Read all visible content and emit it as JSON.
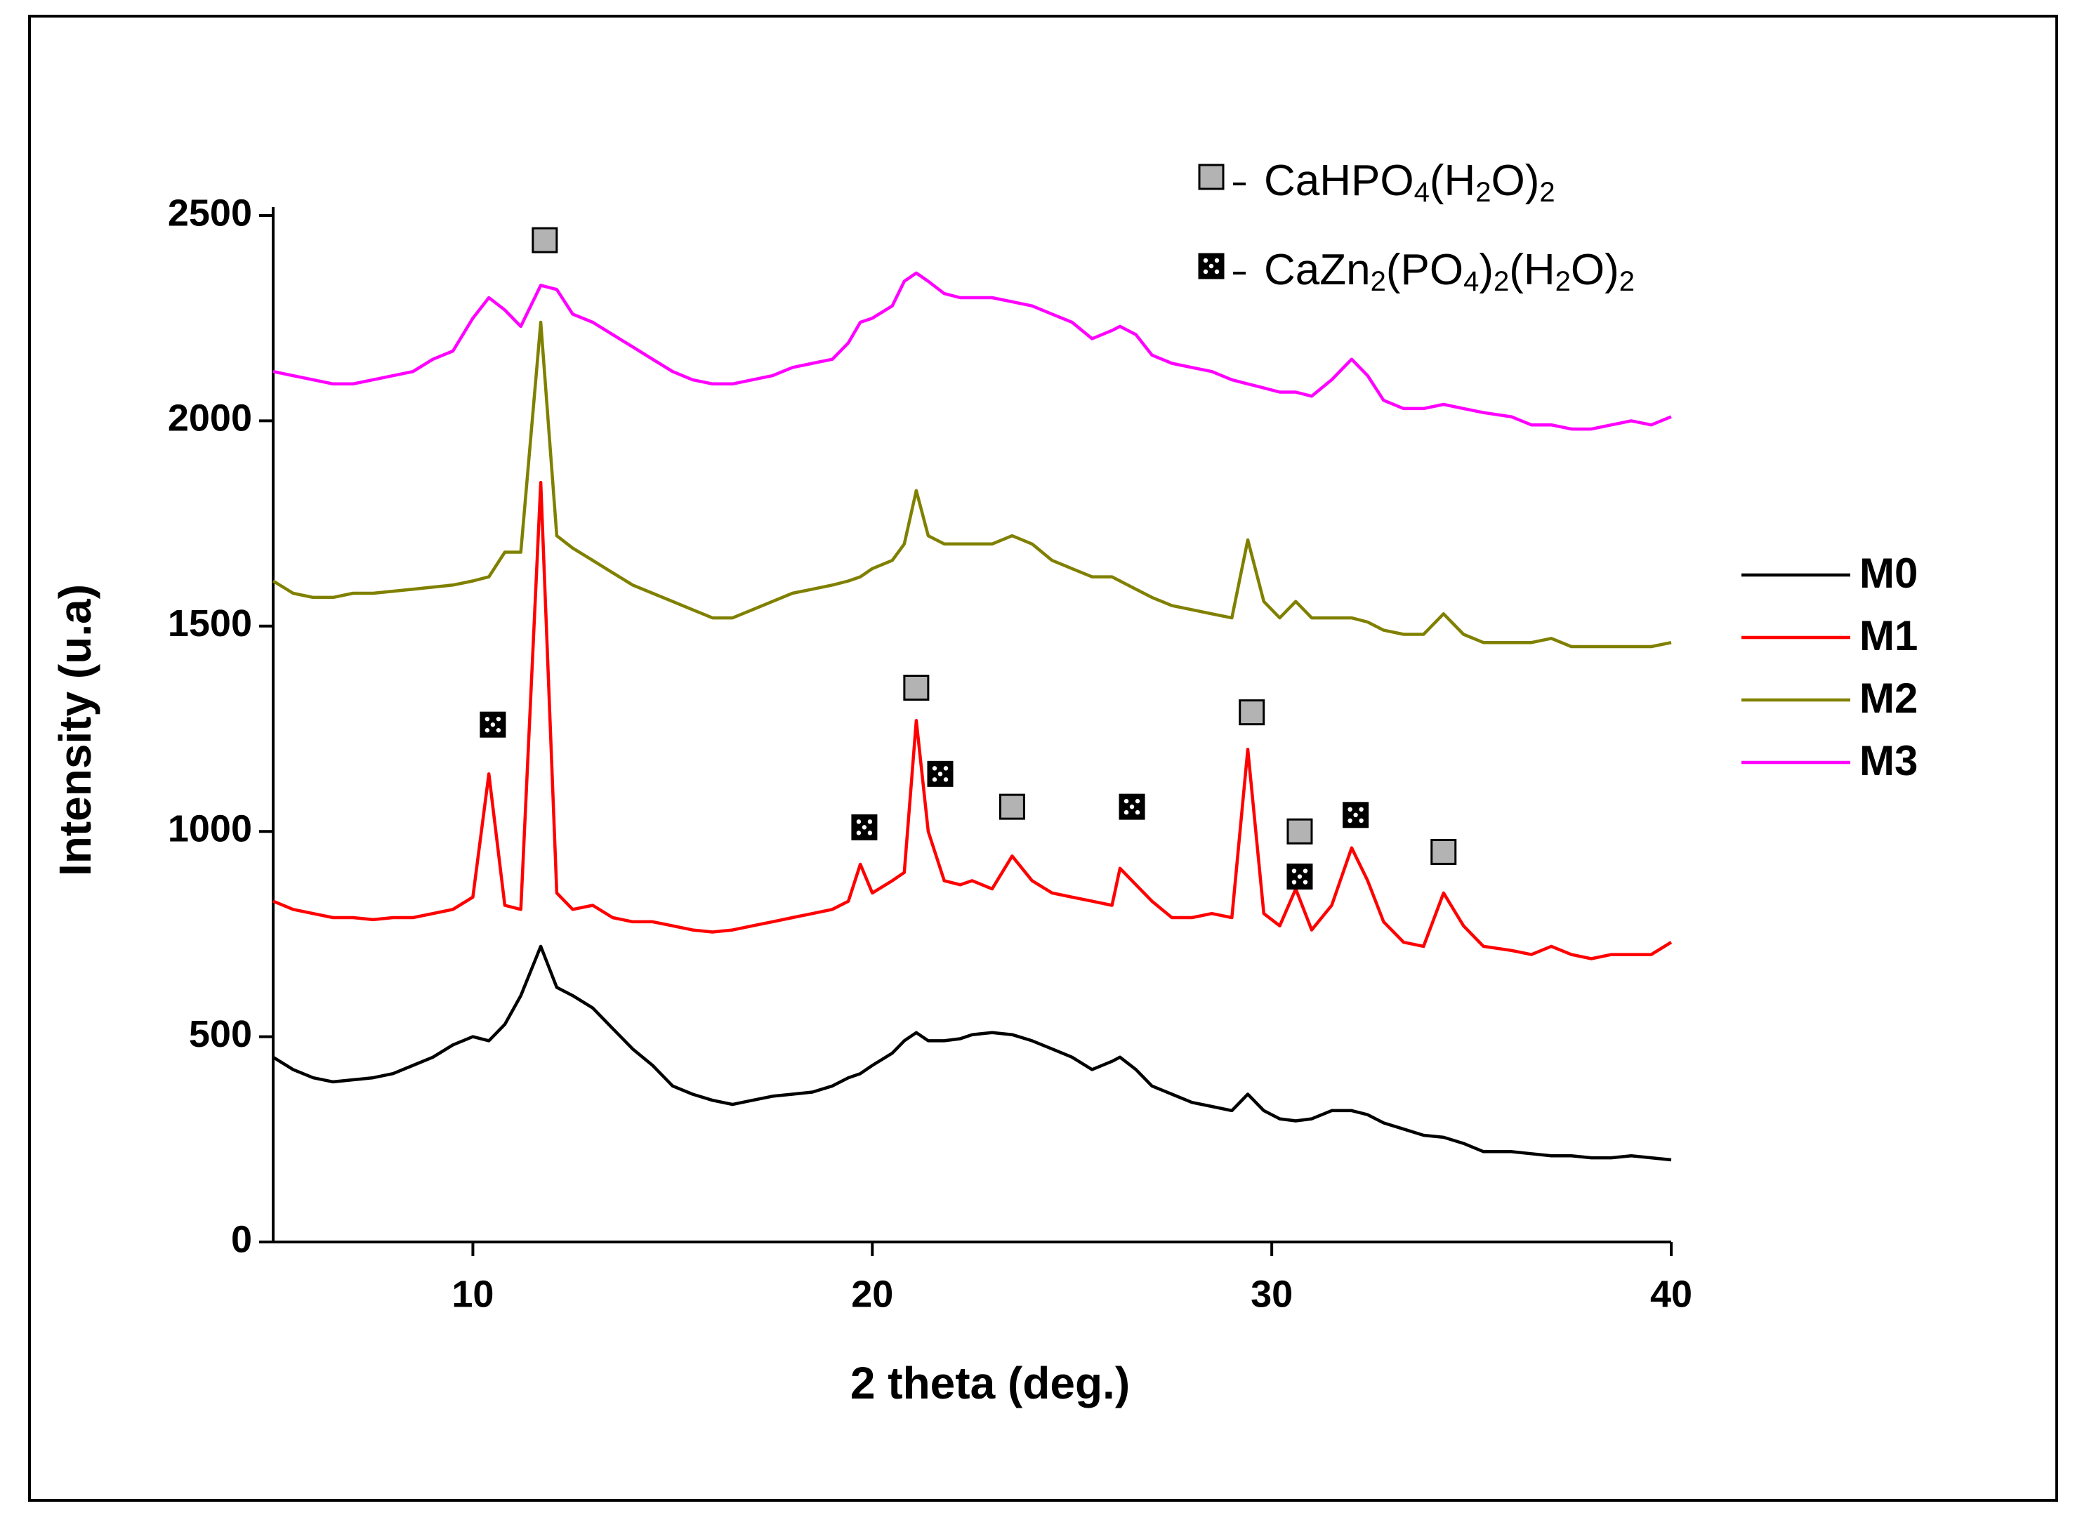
{
  "chart_data": {
    "type": "line",
    "x_label": "2 theta (deg.)",
    "y_label": "Intensity (u.a)",
    "xlim": [
      5,
      40
    ],
    "xticks": [
      10,
      20,
      30,
      40
    ],
    "ylim": [
      0,
      2500
    ],
    "yticks": [
      0,
      500,
      1000,
      1500,
      2000,
      2500
    ],
    "legend": "right",
    "x": [
      5,
      5.5,
      6,
      6.5,
      7,
      7.5,
      8,
      8.5,
      9,
      9.5,
      10,
      10.4,
      10.8,
      11.2,
      11.7,
      12.1,
      12.5,
      13,
      13.5,
      14,
      14.5,
      15,
      15.5,
      16,
      16.5,
      17,
      17.5,
      18,
      18.5,
      19,
      19.4,
      19.7,
      20,
      20.5,
      20.8,
      21.1,
      21.4,
      21.8,
      22.2,
      22.5,
      23,
      23.5,
      24,
      24.5,
      25,
      25.5,
      26,
      26.2,
      26.6,
      27,
      27.5,
      28,
      28.5,
      29,
      29.4,
      29.8,
      30.2,
      30.6,
      31,
      31.5,
      32,
      32.4,
      32.8,
      33.3,
      33.8,
      34.3,
      34.8,
      35.3,
      36,
      36.5,
      37,
      37.5,
      38,
      38.5,
      39,
      39.5,
      40
    ],
    "series": [
      {
        "name": "M0",
        "color": "#000000",
        "values": [
          450,
          420,
          400,
          390,
          395,
          400,
          410,
          430,
          450,
          480,
          500,
          490,
          530,
          600,
          720,
          620,
          600,
          570,
          520,
          470,
          430,
          380,
          360,
          345,
          335,
          345,
          355,
          360,
          365,
          380,
          400,
          410,
          430,
          460,
          490,
          510,
          490,
          490,
          495,
          505,
          510,
          505,
          490,
          470,
          450,
          420,
          440,
          450,
          420,
          380,
          360,
          340,
          330,
          320,
          360,
          320,
          300,
          295,
          300,
          320,
          320,
          310,
          290,
          275,
          260,
          255,
          240,
          220,
          220,
          215,
          210,
          210,
          205,
          205,
          210,
          205,
          200
        ]
      },
      {
        "name": "M1",
        "color": "#ff0000",
        "values": [
          830,
          810,
          800,
          790,
          790,
          785,
          790,
          790,
          800,
          810,
          840,
          1140,
          820,
          810,
          1850,
          850,
          810,
          820,
          790,
          780,
          780,
          770,
          760,
          755,
          760,
          770,
          780,
          790,
          800,
          810,
          830,
          920,
          850,
          880,
          900,
          1270,
          1000,
          880,
          870,
          880,
          860,
          940,
          880,
          850,
          840,
          830,
          820,
          910,
          870,
          830,
          790,
          790,
          800,
          790,
          1200,
          800,
          770,
          860,
          760,
          820,
          960,
          880,
          780,
          730,
          720,
          850,
          770,
          720,
          710,
          700,
          720,
          700,
          690,
          700,
          700,
          700,
          730
        ]
      },
      {
        "name": "M2",
        "color": "#808000",
        "values": [
          1610,
          1580,
          1570,
          1570,
          1580,
          1580,
          1585,
          1590,
          1595,
          1600,
          1610,
          1620,
          1680,
          1680,
          2240,
          1720,
          1690,
          1660,
          1630,
          1600,
          1580,
          1560,
          1540,
          1520,
          1520,
          1540,
          1560,
          1580,
          1590,
          1600,
          1610,
          1620,
          1640,
          1660,
          1700,
          1830,
          1720,
          1700,
          1700,
          1700,
          1700,
          1720,
          1700,
          1660,
          1640,
          1620,
          1620,
          1610,
          1590,
          1570,
          1550,
          1540,
          1530,
          1520,
          1710,
          1560,
          1520,
          1560,
          1520,
          1520,
          1520,
          1510,
          1490,
          1480,
          1480,
          1530,
          1480,
          1460,
          1460,
          1460,
          1470,
          1450,
          1450,
          1450,
          1450,
          1450,
          1460
        ]
      },
      {
        "name": "M3",
        "color": "#ff00ff",
        "values": [
          2120,
          2110,
          2100,
          2090,
          2090,
          2100,
          2110,
          2120,
          2150,
          2170,
          2250,
          2300,
          2270,
          2230,
          2330,
          2320,
          2260,
          2240,
          2210,
          2180,
          2150,
          2120,
          2100,
          2090,
          2090,
          2100,
          2110,
          2130,
          2140,
          2150,
          2190,
          2240,
          2250,
          2280,
          2340,
          2360,
          2340,
          2310,
          2300,
          2300,
          2300,
          2290,
          2280,
          2260,
          2240,
          2200,
          2220,
          2230,
          2210,
          2160,
          2140,
          2130,
          2120,
          2100,
          2090,
          2080,
          2070,
          2070,
          2060,
          2100,
          2150,
          2110,
          2050,
          2030,
          2030,
          2040,
          2030,
          2020,
          2010,
          1990,
          1990,
          1980,
          1980,
          1990,
          2000,
          1990,
          2010
        ]
      }
    ],
    "phases": [
      {
        "name": "CaHPO4(H2O)2",
        "symbol": "square",
        "color": "#b3b3b3",
        "x": [
          11.8,
          21.1,
          23.5,
          29.5,
          30.7,
          34.3
        ],
        "y": [
          2440,
          1350,
          1060,
          1290,
          1000,
          950
        ]
      },
      {
        "name": "CaZn2(PO4)2(H2O)2",
        "symbol": "crossed",
        "color": "#000000",
        "x": [
          10.5,
          19.8,
          21.7,
          26.5,
          30.7,
          32.1
        ],
        "y": [
          1260,
          1010,
          1140,
          1060,
          890,
          1040
        ]
      }
    ]
  }
}
